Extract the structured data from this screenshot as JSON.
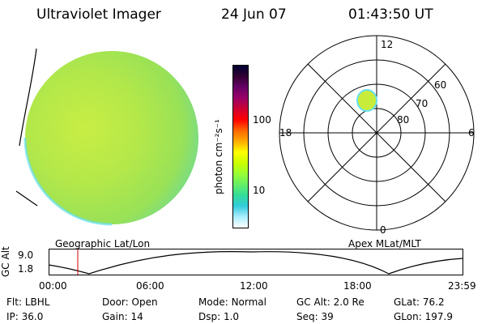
{
  "header": {
    "instrument": "Ultraviolet Imager",
    "date": "24 Jun 07",
    "time": "01:43:50 UT"
  },
  "colorbar": {
    "unit_label": "photon cm⁻²s⁻¹",
    "ticks": [
      "100",
      "10"
    ],
    "colors": [
      "#000033",
      "#330033",
      "#660066",
      "#990066",
      "#cc0033",
      "#ff0000",
      "#ff6600",
      "#ffaa00",
      "#ffff00",
      "#ccff00",
      "#99ff33",
      "#66ee66",
      "#33dd99",
      "#33ccdd",
      "#aaeeff",
      "#ffffff"
    ]
  },
  "polar": {
    "mlt_labels": {
      "top": "12",
      "left": "18",
      "right": "6",
      "bottom": "0"
    },
    "lat_labels": [
      "60",
      "70",
      "80"
    ]
  },
  "orbit": {
    "left_label": "Geographic Lat/Lon",
    "right_label": "Apex MLat/MLT",
    "y_axis_label": "GC Alt",
    "y_ticks": [
      "9.0",
      "1.8"
    ],
    "x_ticks": [
      "00:00",
      "06:00",
      "12:00",
      "18:00",
      "23:59"
    ]
  },
  "status": {
    "row1": [
      {
        "key": "Flt:",
        "value": "LBHL"
      },
      {
        "key": "Door:",
        "value": "Open"
      },
      {
        "key": "Mode:",
        "value": "Normal"
      },
      {
        "key": "GC Alt:",
        "value": "2.0 Re"
      },
      {
        "key": "GLat:",
        "value": "76.2"
      }
    ],
    "row2": [
      {
        "key": "IP:",
        "value": "36.0"
      },
      {
        "key": "Gain:",
        "value": "14"
      },
      {
        "key": "Dsp:",
        "value": "1.0"
      },
      {
        "key": "Seq:",
        "value": "39"
      },
      {
        "key": "GLon:",
        "value": "197.9"
      }
    ]
  }
}
